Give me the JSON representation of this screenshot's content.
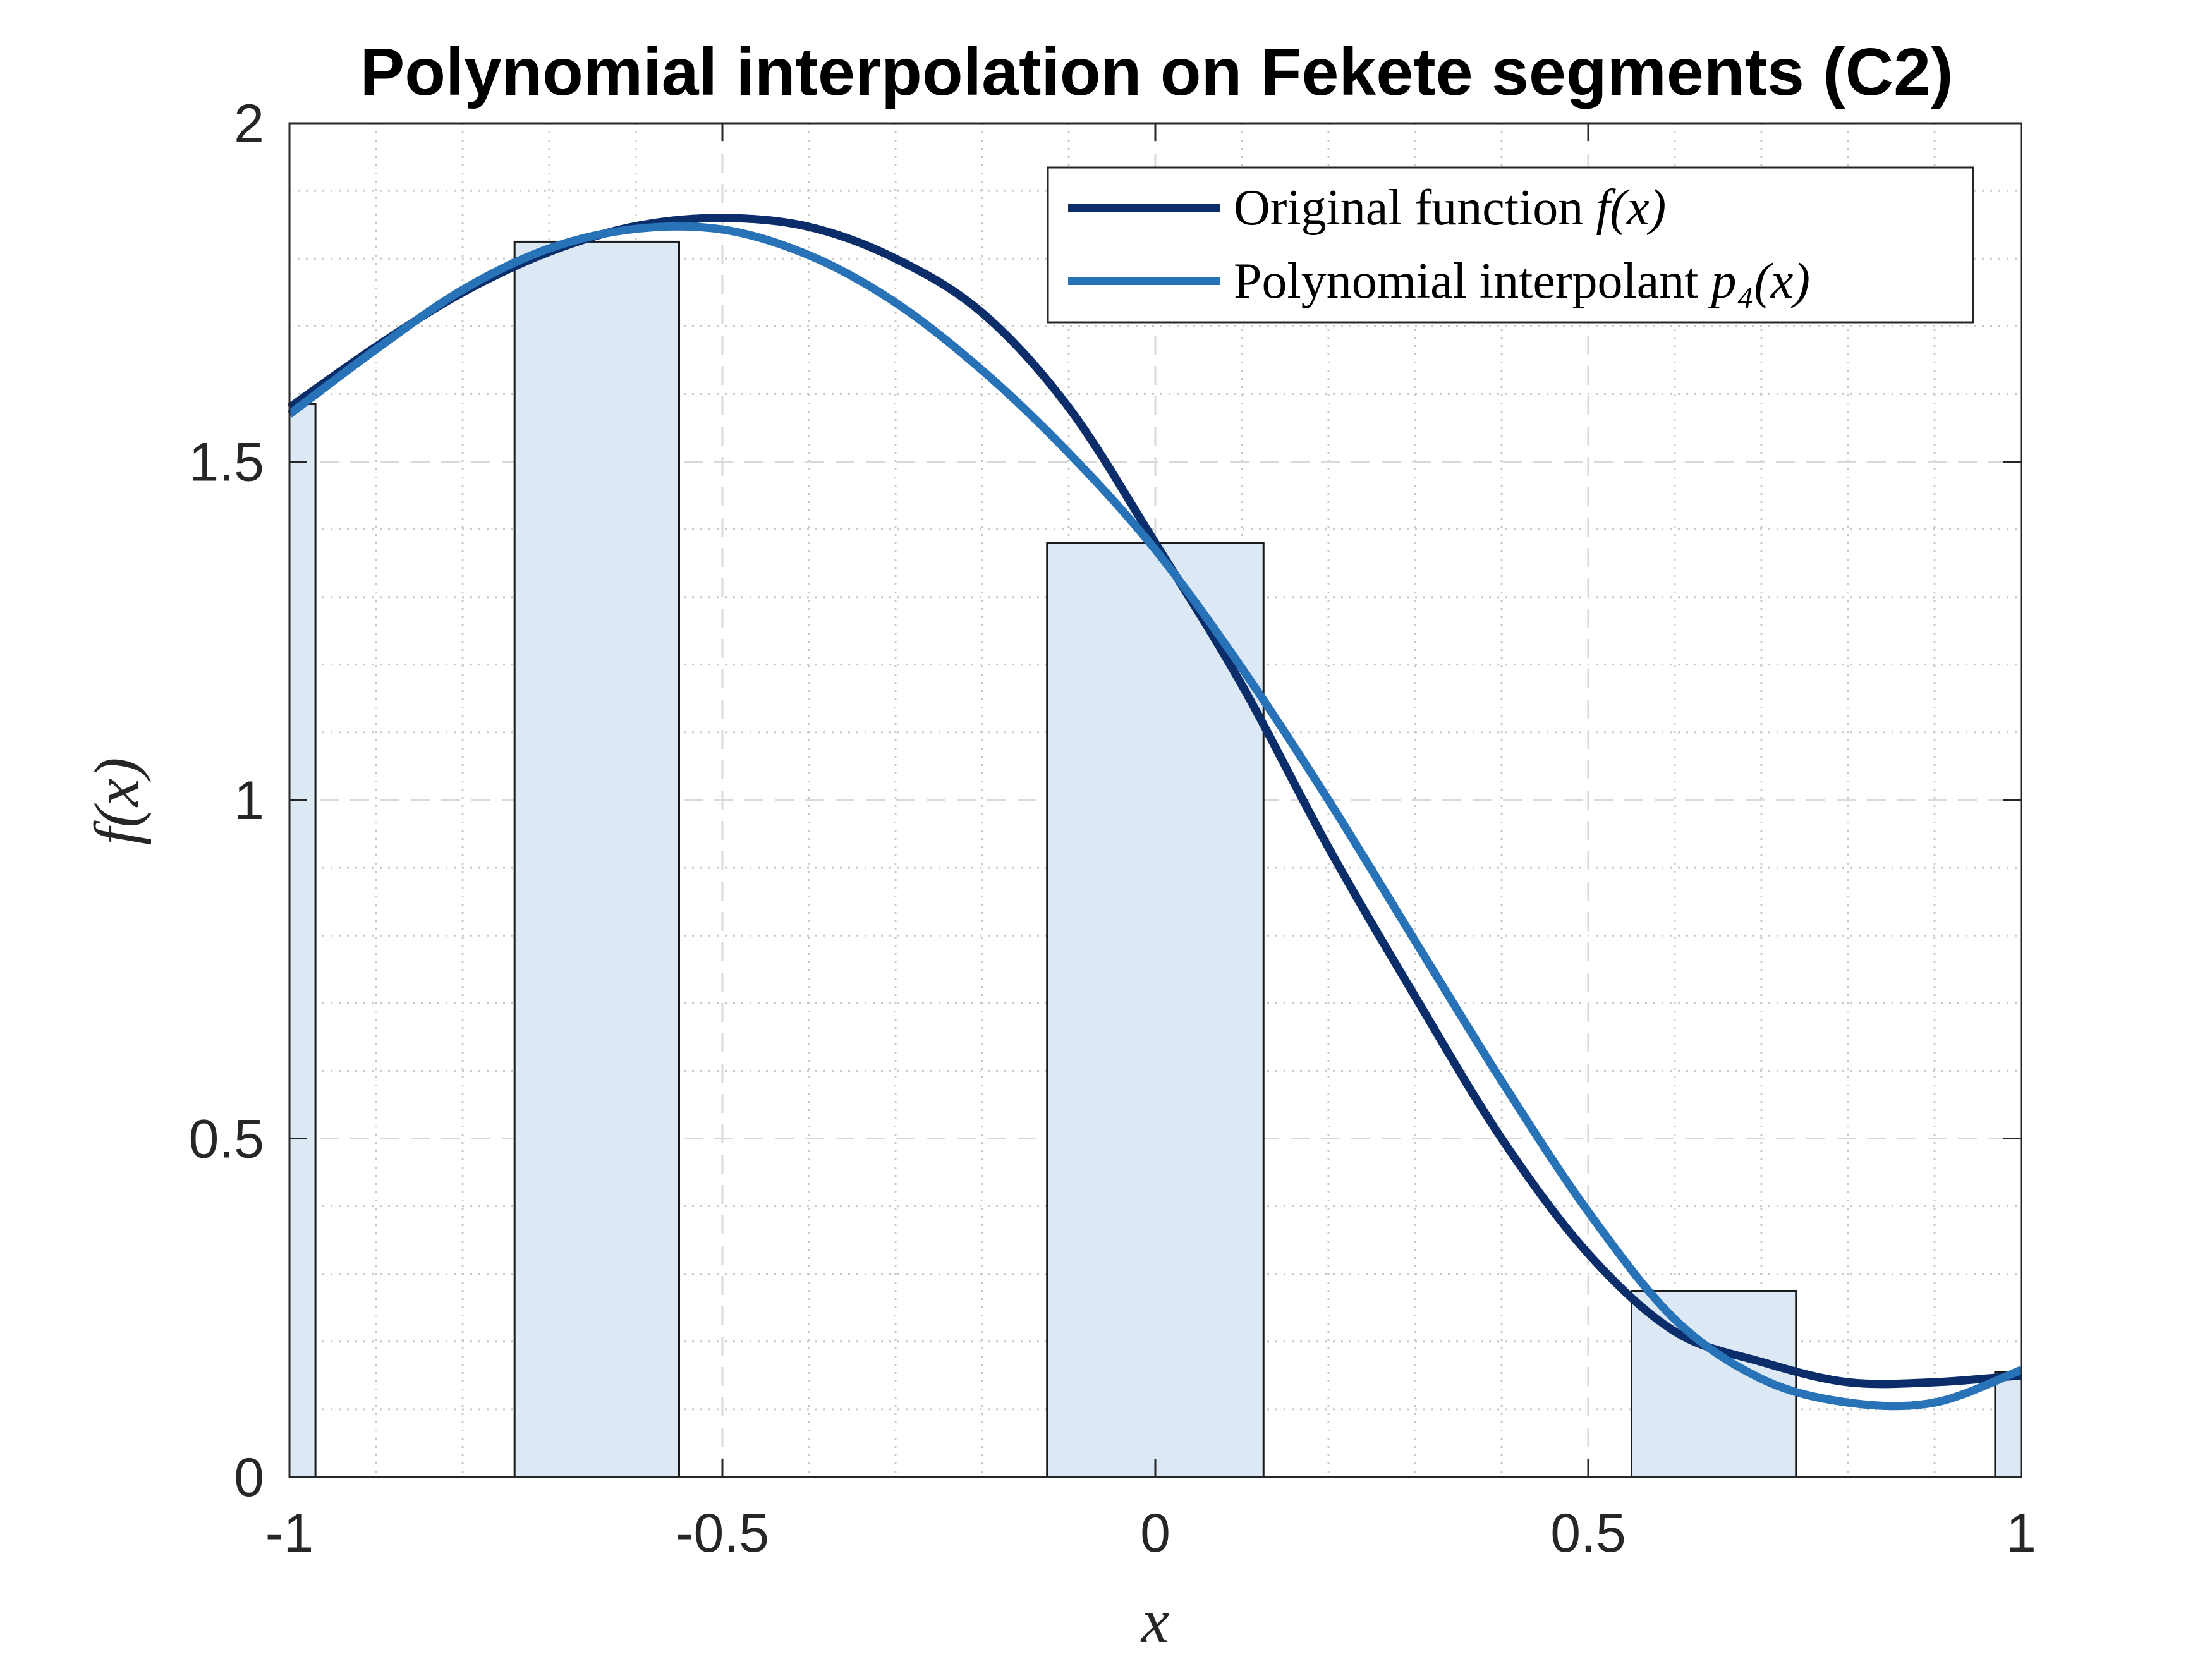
{
  "chart_data": {
    "type": "line",
    "title": "Polynomial interpolation on Fekete segments (C2)",
    "xlabel": "x",
    "ylabel": "f(x)",
    "xlim": [
      -1,
      1
    ],
    "ylim": [
      0,
      2
    ],
    "grid": true,
    "minor_grid": true,
    "legend_placement": "top-right",
    "xticks": [
      -1,
      -0.5,
      0,
      0.5,
      1
    ],
    "xtick_labels": [
      "-1",
      "-0.5",
      "0",
      "0.5",
      "1"
    ],
    "yticks": [
      0,
      0.5,
      1,
      1.5,
      2
    ],
    "ytick_labels": [
      "0",
      "0.5",
      "1",
      "1.5",
      "2"
    ],
    "bars": {
      "color": "#dce8f3",
      "edge_color": "#1a1a1a",
      "segments": [
        {
          "x0": -1.0,
          "x1": -0.97,
          "height": 1.585
        },
        {
          "x0": -0.74,
          "x1": -0.55,
          "height": 1.825
        },
        {
          "x0": -0.125,
          "x1": 0.125,
          "height": 1.38
        },
        {
          "x0": 0.55,
          "x1": 0.74,
          "height": 0.275
        },
        {
          "x0": 0.97,
          "x1": 1.0,
          "height": 0.155
        }
      ]
    },
    "series": [
      {
        "name": "Original function f(x)",
        "color": "#0b2e6b",
        "x": [
          -1.0,
          -0.9,
          -0.8,
          -0.7,
          -0.6,
          -0.5,
          -0.4,
          -0.3,
          -0.2,
          -0.1,
          0.0,
          0.1,
          0.2,
          0.3,
          0.4,
          0.5,
          0.6,
          0.7,
          0.8,
          0.9,
          1.0
        ],
        "y": [
          1.58,
          1.67,
          1.75,
          1.81,
          1.848,
          1.86,
          1.847,
          1.8,
          1.72,
          1.58,
          1.38,
          1.17,
          0.93,
          0.71,
          0.5,
          0.33,
          0.215,
          0.17,
          0.14,
          0.14,
          0.15
        ]
      },
      {
        "name": "Polynomial interpolant p4(x)",
        "color": "#2872b8",
        "x": [
          -1.0,
          -0.9,
          -0.8,
          -0.7,
          -0.6,
          -0.5,
          -0.4,
          -0.3,
          -0.2,
          -0.1,
          0.0,
          0.1,
          0.2,
          0.3,
          0.4,
          0.5,
          0.6,
          0.7,
          0.8,
          0.9,
          1.0
        ],
        "y": [
          1.57,
          1.666,
          1.754,
          1.815,
          1.844,
          1.843,
          1.805,
          1.735,
          1.635,
          1.513,
          1.37,
          1.195,
          1.0,
          0.792,
          0.585,
          0.392,
          0.233,
          0.145,
          0.11,
          0.11,
          0.158
        ]
      }
    ]
  },
  "legend": {
    "entries": [
      {
        "text": "Original function ",
        "math": "f(x)",
        "color": "#0b2e6b"
      },
      {
        "text": "Polynomial interpolant ",
        "math": "p₄(x)",
        "color": "#2872b8"
      }
    ]
  }
}
